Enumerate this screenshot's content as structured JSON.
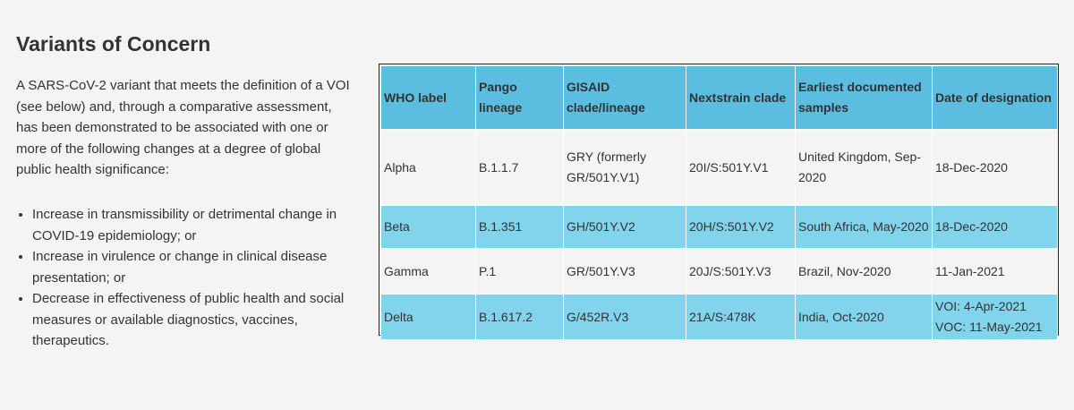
{
  "heading": "Variants of Concern",
  "intro": "A SARS-CoV-2 variant that meets the definition of a VOI (see below) and, through a comparative assessment, has been demonstrated to be associated with one or more of the following changes at a degree of global public health significance:",
  "bullets": [
    "Increase in transmissibility or detrimental change in COVID-19 epidemiology; or",
    "Increase in virulence or change in clinical disease presentation; or",
    "Decrease in effectiveness of public health and social measures or available diagnostics, vaccines, therapeutics."
  ],
  "table": {
    "headers": [
      "WHO label",
      "Pango lineage",
      "GISAID clade/lineage",
      "Nextstrain clade",
      "Earliest documented samples",
      "Date of designation"
    ],
    "rows": [
      [
        "Alpha",
        "B.1.1.7",
        "GRY (formerly GR/501Y.V1)",
        "20I/S:501Y.V1",
        "United Kingdom, Sep-2020",
        "18-Dec-2020"
      ],
      [
        "Beta",
        "B.1.351",
        "GH/501Y.V2",
        "20H/S:501Y.V2",
        "South Africa, May-2020",
        "18-Dec-2020"
      ],
      [
        "Gamma",
        "P.1",
        "GR/501Y.V3",
        "20J/S:501Y.V3",
        "Brazil, Nov-2020",
        "11-Jan-2021"
      ],
      [
        "Delta",
        "B.1.617.2",
        "G/452R.V3",
        "21A/S:478K",
        "India, Oct-2020",
        "VOI: 4-Apr-2021 VOC: 11-May-2021"
      ]
    ]
  },
  "colors": {
    "header_bg": "#5bbde0",
    "row_alt_bg": "#82d3ec",
    "page_bg": "#f4f4f4"
  }
}
